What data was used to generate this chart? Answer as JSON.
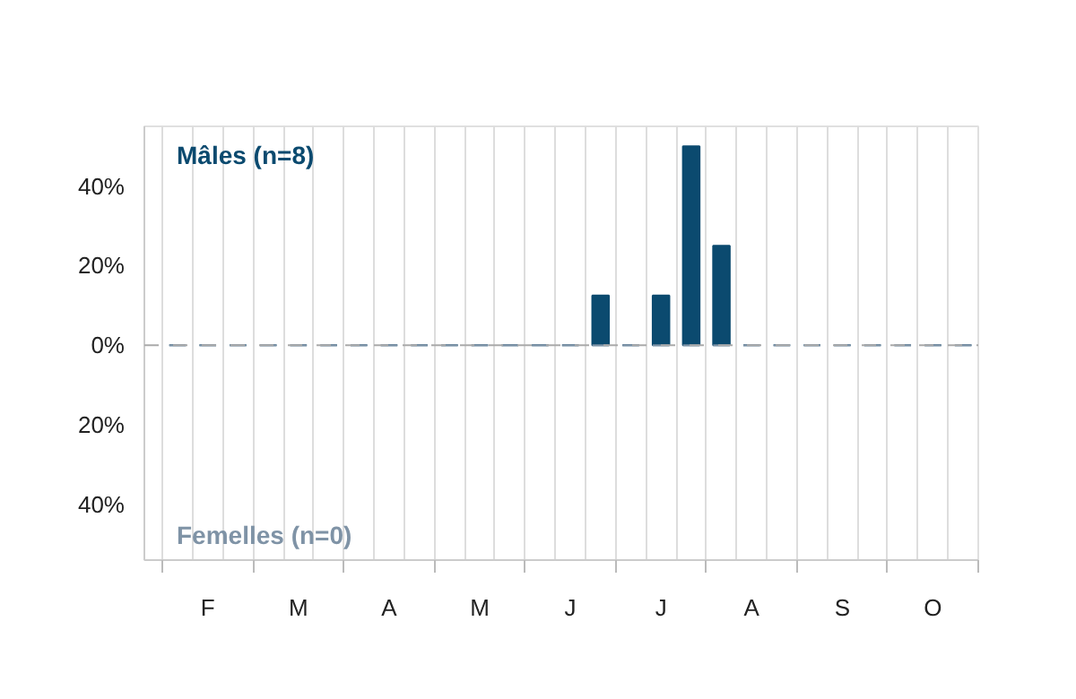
{
  "chart_data": {
    "type": "bar",
    "categories": [
      null,
      "F",
      null,
      null,
      "M",
      null,
      null,
      "A",
      null,
      null,
      "M",
      null,
      null,
      "J",
      null,
      null,
      "J",
      null,
      null,
      "A",
      null,
      null,
      "S",
      null,
      null,
      "O",
      null
    ],
    "series": [
      {
        "name": "Mâles (n=8)",
        "color": "#0b4a6f",
        "values": [
          0,
          0,
          0,
          0,
          0,
          0,
          0,
          0,
          0,
          0,
          0,
          0,
          0,
          0,
          12.5,
          0,
          12.5,
          50,
          25,
          0,
          0,
          0,
          0,
          0,
          0,
          0,
          0
        ]
      },
      {
        "name": "Femelles (n=0)",
        "color": "#7f93a6",
        "values": [
          0,
          0,
          0,
          0,
          0,
          0,
          0,
          0,
          0,
          0,
          0,
          0,
          0,
          0,
          0,
          0,
          0,
          0,
          0,
          0,
          0,
          0,
          0,
          0,
          0,
          0,
          0
        ]
      }
    ],
    "ylim": [
      -54,
      55
    ],
    "yticks": [
      {
        "value": -40,
        "label": "40%"
      },
      {
        "value": -20,
        "label": "20%"
      },
      {
        "value": 0,
        "label": "0%"
      },
      {
        "value": 20,
        "label": "20%"
      },
      {
        "value": 40,
        "label": "40%"
      }
    ],
    "grid": "x",
    "ref_lines": [
      {
        "axis": "y",
        "value": 0,
        "label": null,
        "color": "#aaaaaa",
        "line_style": "dashed"
      }
    ]
  }
}
